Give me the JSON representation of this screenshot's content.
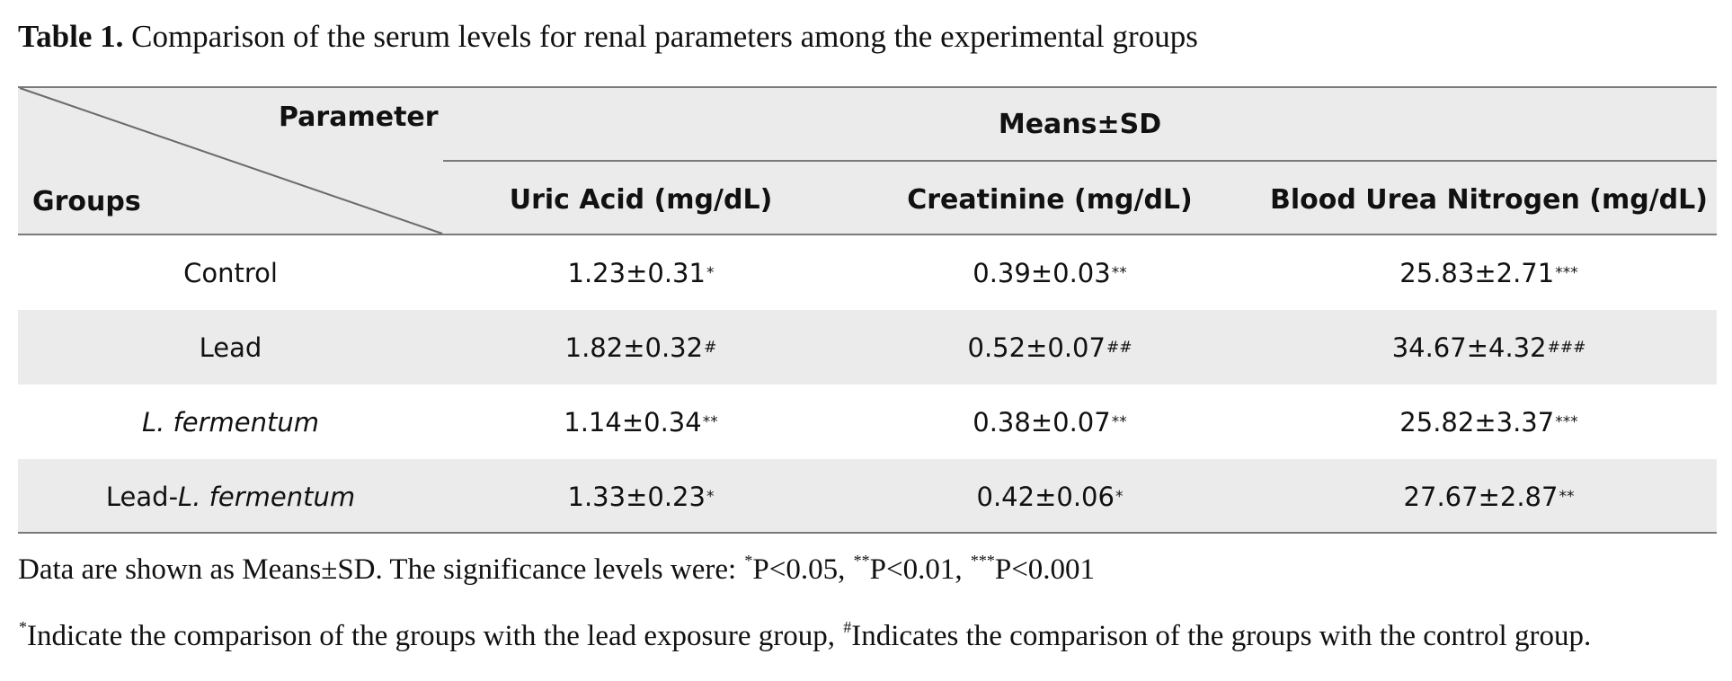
{
  "caption": {
    "label": "Table 1.",
    "text": " Comparison of the serum levels for renal parameters among the experimental groups"
  },
  "header": {
    "parameter": "Parameter",
    "groups": "Groups",
    "means": "Means±SD",
    "columns": [
      "Uric Acid (mg/dL)",
      "Creatinine (mg/dL)",
      "Blood Urea Nitrogen (mg/dL)"
    ]
  },
  "rows": [
    {
      "group": "Control",
      "cells": [
        {
          "value": "1.23±0.31",
          "mark": "*"
        },
        {
          "value": "0.39±0.03",
          "mark": "**"
        },
        {
          "value": "25.83±2.71",
          "mark": "***"
        }
      ]
    },
    {
      "group": "Lead",
      "cells": [
        {
          "value": "1.82±0.32",
          "mark": "#"
        },
        {
          "value": "0.52±0.07",
          "mark": "##"
        },
        {
          "value": "34.67±4.32",
          "mark": "###"
        }
      ]
    },
    {
      "group": "L. fermentum",
      "cells": [
        {
          "value": "1.14±0.34",
          "mark": "**"
        },
        {
          "value": "0.38±0.07",
          "mark": "**"
        },
        {
          "value": "25.82±3.37",
          "mark": "***"
        }
      ]
    },
    {
      "group_prefix": "Lead-",
      "group_italic": "L. fermentum",
      "cells": [
        {
          "value": "1.33±0.23",
          "mark": "*"
        },
        {
          "value": "0.42±0.06",
          "mark": "*"
        },
        {
          "value": "27.67±2.87",
          "mark": "**"
        }
      ]
    }
  ],
  "notes": {
    "line1": {
      "a": "Data are shown as Means±SD. The significance levels were: ",
      "m1": "*",
      "b": "P<0.05, ",
      "m2": "**",
      "c": "P<0.01, ",
      "m3": "***",
      "d": "P<0.001"
    },
    "line2": {
      "m1": "*",
      "a": "Indicate the comparison of the groups with the lead exposure group, ",
      "m2": "#",
      "b": "Indicates the comparison of the groups with the control group."
    }
  },
  "colors": {
    "header_bg": "#ebebeb",
    "rule": "#7a7a7a"
  }
}
